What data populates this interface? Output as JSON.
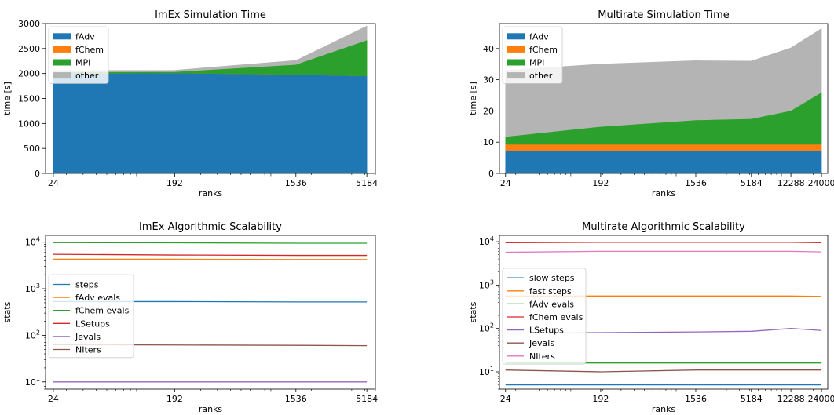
{
  "colors": {
    "fAdv": "#1f77b4",
    "fChem": "#ff7f0e",
    "MPI": "#2ca02c",
    "other": "#b4b4b4",
    "c0": "#1f77b4",
    "c1": "#ff7f0e",
    "c2": "#2ca02c",
    "c3": "#d62728",
    "c4": "#9467bd",
    "c5": "#8c564b",
    "c6": "#e377c2"
  },
  "chart_data": [
    {
      "type": "area",
      "title": "ImEx Simulation Time",
      "xlabel": "ranks",
      "ylabel": "time [s]",
      "xscale": "log",
      "x": [
        24,
        192,
        1536,
        5184
      ],
      "xticks": [
        "24",
        "192",
        "1536",
        "5184"
      ],
      "xlim": [
        21,
        6000
      ],
      "ylim": [
        0,
        3000
      ],
      "yticks": [
        0,
        500,
        1000,
        1500,
        2000,
        2500,
        3000
      ],
      "legend_loc": "upper-left",
      "series": [
        {
          "name": "fAdv",
          "values": [
            2000,
            2010,
            1980,
            1950
          ]
        },
        {
          "name": "fChem",
          "values": [
            0.3,
            0.3,
            0.3,
            0.3
          ]
        },
        {
          "name": "MPI",
          "values": [
            30,
            25,
            200,
            720
          ]
        },
        {
          "name": "other",
          "values": [
            30,
            30,
            80,
            280
          ]
        }
      ]
    },
    {
      "type": "area",
      "title": "Multirate Simulation Time",
      "xlabel": "ranks",
      "ylabel": "time [s]",
      "xscale": "log",
      "x": [
        24,
        192,
        1536,
        5184,
        12288,
        24000
      ],
      "xticks": [
        "24",
        "192",
        "1536",
        "5184",
        "12288",
        "24000"
      ],
      "xlim": [
        21,
        27500
      ],
      "ylim": [
        0,
        48
      ],
      "yticks": [
        0,
        10,
        20,
        30,
        40
      ],
      "legend_loc": "upper-left",
      "series": [
        {
          "name": "fAdv",
          "values": [
            7.1,
            7.1,
            7.1,
            7.1,
            7.1,
            7.1
          ]
        },
        {
          "name": "fChem",
          "values": [
            2.2,
            2.2,
            2.2,
            2.2,
            2.2,
            2.2
          ]
        },
        {
          "name": "MPI",
          "values": [
            2.5,
            5.7,
            7.8,
            8.2,
            10.8,
            16.7
          ]
        },
        {
          "name": "other",
          "values": [
            21.2,
            20.0,
            19.0,
            18.5,
            20.1,
            20.4
          ]
        }
      ]
    },
    {
      "type": "line",
      "title": "ImEx Algorithmic Scalability",
      "xlabel": "ranks",
      "ylabel": "stats",
      "xscale": "log",
      "yscale": "log",
      "x": [
        24,
        192,
        1536,
        5184
      ],
      "xticks": [
        "24",
        "192",
        "1536",
        "5184"
      ],
      "xlim": [
        21,
        6000
      ],
      "ylim": [
        7,
        14000
      ],
      "yticks": [
        {
          "v": 10,
          "base": "10",
          "exp": "1"
        },
        {
          "v": 100,
          "base": "10",
          "exp": "2"
        },
        {
          "v": 1000,
          "base": "10",
          "exp": "3"
        },
        {
          "v": 10000,
          "base": "10",
          "exp": "4"
        }
      ],
      "legend_loc": "center-left",
      "series": [
        {
          "name": "steps",
          "values": [
            530,
            530,
            520,
            520
          ]
        },
        {
          "name": "fAdv evals",
          "values": [
            4300,
            4300,
            4250,
            4250
          ]
        },
        {
          "name": "fChem evals",
          "values": [
            9800,
            9700,
            9500,
            9500
          ]
        },
        {
          "name": "LSetups",
          "values": [
            5500,
            5300,
            5200,
            5200
          ]
        },
        {
          "name": "Jevals",
          "values": [
            10,
            10,
            10,
            10
          ]
        },
        {
          "name": "NIters",
          "values": [
            63,
            62,
            61,
            60
          ]
        }
      ]
    },
    {
      "type": "line",
      "title": "Multirate Algorithmic Scalability",
      "xlabel": "ranks",
      "ylabel": "stats",
      "xscale": "log",
      "yscale": "log",
      "x": [
        24,
        192,
        1536,
        5184,
        12288,
        24000
      ],
      "xticks": [
        "24",
        "192",
        "1536",
        "5184",
        "12288",
        "24000"
      ],
      "xlim": [
        21,
        27500
      ],
      "ylim": [
        4,
        14000
      ],
      "yticks": [
        {
          "v": 10,
          "base": "10",
          "exp": "1"
        },
        {
          "v": 100,
          "base": "10",
          "exp": "2"
        },
        {
          "v": 1000,
          "base": "10",
          "exp": "3"
        },
        {
          "v": 10000,
          "base": "10",
          "exp": "4"
        }
      ],
      "legend_loc": "center-left",
      "series": [
        {
          "name": "slow steps",
          "values": [
            5,
            5,
            5,
            5,
            5,
            5
          ]
        },
        {
          "name": "fast steps",
          "values": [
            560,
            560,
            560,
            560,
            560,
            550
          ]
        },
        {
          "name": "fAdv evals",
          "values": [
            16,
            16,
            16,
            16,
            16,
            16
          ]
        },
        {
          "name": "fChem evals",
          "values": [
            9500,
            9700,
            9700,
            9700,
            9700,
            9500
          ]
        },
        {
          "name": "LSetups",
          "values": [
            78,
            80,
            83,
            86,
            100,
            90
          ]
        },
        {
          "name": "Jevals",
          "values": [
            11,
            10,
            11,
            11,
            11,
            11
          ]
        },
        {
          "name": "NIters",
          "values": [
            5700,
            6000,
            6000,
            6000,
            6000,
            5800
          ]
        }
      ]
    }
  ]
}
